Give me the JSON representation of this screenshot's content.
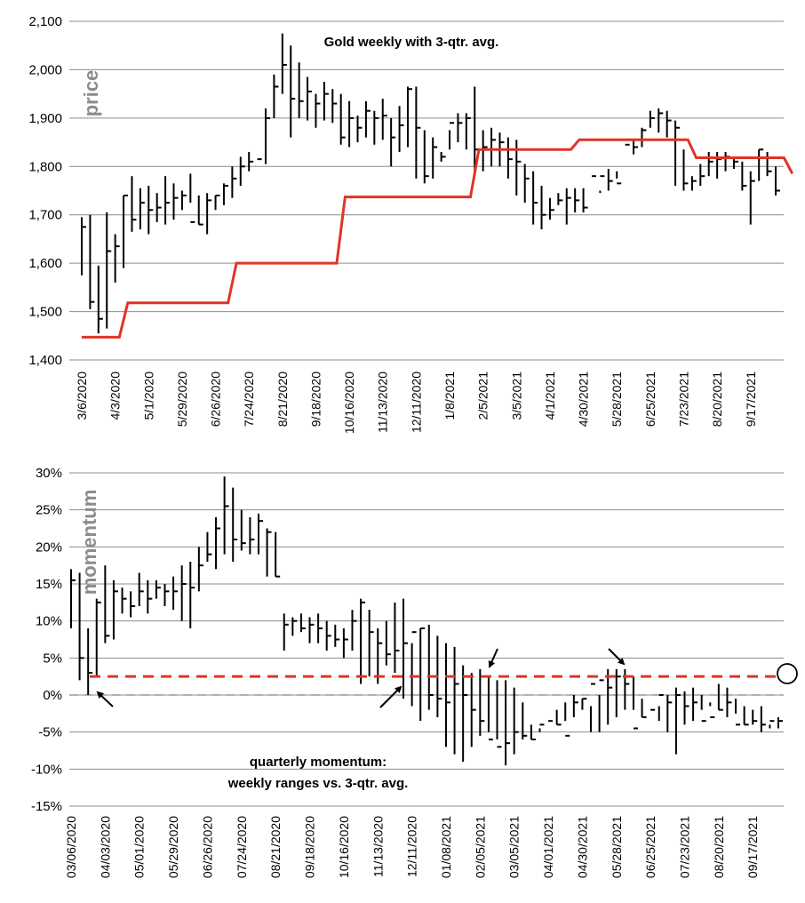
{
  "chart_data": [
    {
      "type": "ohlc",
      "title": "Gold weekly with 3-qtr. avg.",
      "ylabel": "price",
      "ylim": [
        1400,
        2100
      ],
      "yticks": [
        "1,400",
        "1,500",
        "1,600",
        "1,700",
        "1,800",
        "1,900",
        "2,000",
        "2,100"
      ],
      "ytick_values": [
        1400,
        1500,
        1600,
        1700,
        1800,
        1900,
        2000,
        2100
      ],
      "xtick_labels": [
        "3/6/2020",
        "4/3/2020",
        "5/1/2020",
        "5/29/2020",
        "6/26/2020",
        "7/24/2020",
        "8/21/2020",
        "9/18/2020",
        "10/16/2020",
        "11/13/2020",
        "12/11/2020",
        "1/8/2021",
        "2/5/2021",
        "3/5/2021",
        "4/1/2021",
        "4/30/2021",
        "5/28/2021",
        "6/25/2021",
        "7/23/2021",
        "8/20/2021",
        "9/17/2021"
      ],
      "weeks": 84,
      "highs": [
        1695,
        1700,
        1595,
        1705,
        1660,
        1740,
        1780,
        1755,
        1760,
        1745,
        1780,
        1765,
        1750,
        1785,
        1740,
        1745,
        1740,
        1765,
        1800,
        1820,
        1830,
        1810,
        1920,
        1990,
        2075,
        2050,
        2015,
        1985,
        1950,
        1975,
        1960,
        1950,
        1935,
        1905,
        1935,
        1915,
        1940,
        1900,
        1925,
        1965,
        1965,
        1875,
        1860,
        1830,
        1875,
        1910,
        1910,
        1965,
        1875,
        1880,
        1870,
        1860,
        1855,
        1805,
        1790,
        1760,
        1735,
        1745,
        1755,
        1755,
        1755,
        1740,
        1745,
        1795,
        1790,
        1810,
        1855,
        1880,
        1915,
        1920,
        1915,
        1895,
        1835,
        1780,
        1805,
        1830,
        1830,
        1830,
        1815,
        1810,
        1790,
        1835,
        1830,
        1800
      ],
      "lows": [
        1575,
        1505,
        1455,
        1465,
        1560,
        1590,
        1665,
        1670,
        1660,
        1685,
        1680,
        1690,
        1710,
        1725,
        1680,
        1660,
        1710,
        1720,
        1735,
        1760,
        1790,
        1810,
        1805,
        1900,
        1950,
        1860,
        1900,
        1895,
        1880,
        1895,
        1890,
        1845,
        1840,
        1850,
        1860,
        1845,
        1855,
        1800,
        1830,
        1840,
        1775,
        1765,
        1775,
        1810,
        1835,
        1850,
        1835,
        1780,
        1790,
        1800,
        1800,
        1775,
        1740,
        1725,
        1680,
        1670,
        1690,
        1720,
        1680,
        1705,
        1705,
        1740,
        1750,
        1750,
        1775,
        1810,
        1825,
        1840,
        1880,
        1870,
        1860,
        1760,
        1750,
        1750,
        1760,
        1780,
        1775,
        1790,
        1795,
        1750,
        1680,
        1770,
        1780,
        1740
      ],
      "closes": [
        1675,
        1520,
        1485,
        1625,
        1635,
        1740,
        1690,
        1725,
        1710,
        1715,
        1725,
        1735,
        1740,
        1685,
        1680,
        1730,
        1740,
        1760,
        1775,
        1800,
        1810,
        1815,
        1900,
        1965,
        2010,
        1940,
        1935,
        1955,
        1930,
        1950,
        1930,
        1860,
        1900,
        1880,
        1915,
        1900,
        1905,
        1860,
        1885,
        1960,
        1880,
        1780,
        1840,
        1820,
        1890,
        1890,
        1900,
        1835,
        1840,
        1855,
        1850,
        1815,
        1810,
        1775,
        1725,
        1700,
        1710,
        1730,
        1735,
        1730,
        1715,
        1780,
        1780,
        1770,
        1765,
        1845,
        1840,
        1875,
        1900,
        1910,
        1895,
        1880,
        1765,
        1770,
        1780,
        1810,
        1815,
        1820,
        1810,
        1760,
        1770,
        1835,
        1790,
        1750
      ],
      "avg_line": [
        {
          "x": 0,
          "y": 1447
        },
        {
          "x": 4.5,
          "y": 1447
        },
        {
          "x": 5.5,
          "y": 1518
        },
        {
          "x": 17.5,
          "y": 1518
        },
        {
          "x": 18.5,
          "y": 1600
        },
        {
          "x": 30.5,
          "y": 1600
        },
        {
          "x": 31.5,
          "y": 1737
        },
        {
          "x": 46.5,
          "y": 1737
        },
        {
          "x": 47.5,
          "y": 1835
        },
        {
          "x": 58.5,
          "y": 1835
        },
        {
          "x": 59.5,
          "y": 1855
        },
        {
          "x": 72.5,
          "y": 1855
        },
        {
          "x": 73.5,
          "y": 1818
        },
        {
          "x": 84,
          "y": 1818
        },
        {
          "x": 85,
          "y": 1785
        }
      ],
      "avg_color": "#e03426"
    },
    {
      "type": "ohlc",
      "title": "quarterly momentum:",
      "subtitle": "weekly ranges vs. 3-qtr. avg.",
      "ylabel": "momentum",
      "ylim": [
        -15,
        30
      ],
      "yticks": [
        "-15%",
        "-10%",
        "-5%",
        "0%",
        "5%",
        "10%",
        "15%",
        "20%",
        "25%",
        "30%"
      ],
      "ytick_values": [
        -15,
        -10,
        -5,
        0,
        5,
        10,
        15,
        20,
        25,
        30
      ],
      "xtick_labels": [
        "03/06/2020",
        "04/03/2020",
        "05/01/2020",
        "05/29/2020",
        "06/26/2020",
        "07/24/2020",
        "08/21/2020",
        "09/18/2020",
        "10/16/2020",
        "11/13/2020",
        "12/11/2020",
        "01/08/2021",
        "02/05/2021",
        "03/05/2021",
        "04/01/2021",
        "04/30/2021",
        "05/28/2021",
        "06/25/2021",
        "07/23/2021",
        "08/20/2021",
        "09/17/2021"
      ],
      "weeks": 84,
      "highs": [
        17,
        16.5,
        9,
        13,
        17.5,
        15.5,
        14.5,
        14,
        16.5,
        15.5,
        15.5,
        15,
        16,
        17.5,
        18,
        20,
        22,
        24,
        29.5,
        28,
        25,
        24,
        24.5,
        22.5,
        22,
        11,
        10.5,
        11,
        10.5,
        11,
        10,
        9.5,
        9,
        11.5,
        13,
        11.5,
        9,
        10,
        12.5,
        13,
        7,
        9,
        9.5,
        8,
        7,
        6.5,
        4,
        3,
        3.5,
        2.5,
        2,
        2,
        1,
        -1,
        -4,
        -5,
        -4,
        -4,
        -3.5,
        -3,
        -2,
        -1.5,
        0,
        3.5,
        3.5,
        3.5,
        2.5,
        -0.5,
        -3,
        -1.5,
        0,
        1,
        0.5,
        1,
        0,
        -1.5,
        1.5,
        1,
        -0.5,
        -1.5,
        -2,
        -1.5,
        -4,
        -3
      ],
      "lows": [
        9,
        2,
        0,
        2.5,
        7,
        7.5,
        11,
        10.5,
        12,
        11,
        13,
        12,
        11.5,
        10,
        9,
        14,
        18,
        17,
        19,
        18,
        19.5,
        19,
        19,
        16,
        16,
        6,
        8,
        8.5,
        7,
        7,
        6,
        6.5,
        5,
        6,
        1.5,
        2.5,
        1.5,
        4,
        3,
        -0.5,
        -1.5,
        -3.5,
        -2,
        -3,
        -7,
        -8,
        -9,
        -7,
        -5.5,
        -5,
        -6,
        -9.5,
        -8,
        -6,
        -6,
        -4.5,
        -4,
        -2,
        -1,
        0,
        -0.5,
        -5,
        -5,
        -4,
        -3,
        -2,
        -2,
        -3,
        -3,
        -3.5,
        -5,
        -8,
        -4,
        -3.5,
        -2,
        -1,
        -2,
        -3,
        -2.5,
        -4,
        -4,
        -5,
        -4.5,
        -4.5
      ],
      "closes": [
        15.5,
        5,
        3,
        12.5,
        8,
        14,
        13,
        12,
        14,
        13,
        14.5,
        14,
        14,
        15,
        14.5,
        17.5,
        19,
        22.5,
        25.5,
        21,
        20.5,
        21,
        23.5,
        22,
        16,
        9.5,
        10,
        9,
        9.5,
        9,
        8,
        7.5,
        7.5,
        10,
        12.5,
        8.5,
        7,
        5.5,
        6,
        7,
        8.5,
        9,
        0,
        -0.5,
        -1,
        1.5,
        0,
        -2,
        -3.5,
        -6,
        -7,
        -6.5,
        -5,
        -5.5,
        -6,
        -4,
        -3.5,
        -4,
        -5.5,
        -1,
        -0.5,
        1.5,
        2,
        1,
        2.5,
        1.5,
        -4.5,
        -3,
        -2,
        0,
        -1,
        0,
        -1.5,
        -1,
        -3.5,
        -3,
        -2,
        -1,
        -4,
        -4,
        -3.5,
        -4,
        -3.5,
        -3.5
      ],
      "ref_line": 2.5,
      "ref_color": "#e03426",
      "zero_line": 0,
      "annotations": [
        "arrow up-left near 04/03/2020",
        "arrow up-right near 12/11/2020",
        "arrow down-left near 02/05/2021",
        "arrow down-right near 05/28/2021",
        "circle at ref line right edge"
      ]
    }
  ]
}
